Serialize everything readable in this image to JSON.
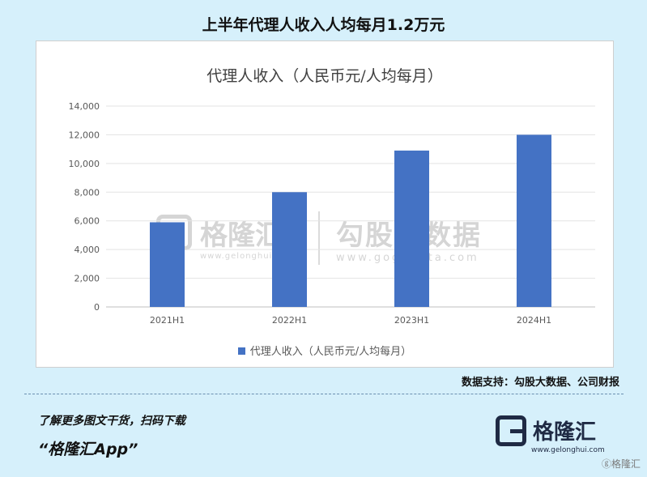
{
  "page_title": "上半年代理人收入人均每月1.2万元",
  "source_note": "数据支持：勾股大数据、公司财报",
  "promo": {
    "line": "了解更多图文干货，扫码下载",
    "app": "“格隆汇App”"
  },
  "brand": {
    "name": "格隆汇",
    "url": "www.gelonghui.com"
  },
  "watermark": {
    "name1": "格隆汇",
    "url1": "www.gelonghui.com",
    "name2": "勾股大数据",
    "url2": "www.gogudata.com"
  },
  "corner_mark": "格隆汇",
  "colors": {
    "bar": "#4472c4",
    "background": "#d6f0fb"
  },
  "chart_data": {
    "type": "bar",
    "title": "代理人收入（人民币元/人均每月）",
    "categories": [
      "2021H1",
      "2022H1",
      "2023H1",
      "2024H1"
    ],
    "series": [
      {
        "name": "代理人收入（人民币元/人均每月）",
        "values": [
          5900,
          8000,
          10900,
          12000
        ]
      }
    ],
    "ylim": [
      0,
      14000
    ],
    "yticks": [
      "0",
      "2,000",
      "4,000",
      "6,000",
      "8,000",
      "10,000",
      "12,000",
      "14,000"
    ],
    "ytick_values": [
      0,
      2000,
      4000,
      6000,
      8000,
      10000,
      12000,
      14000
    ],
    "grid": true,
    "legend": "bottom"
  }
}
